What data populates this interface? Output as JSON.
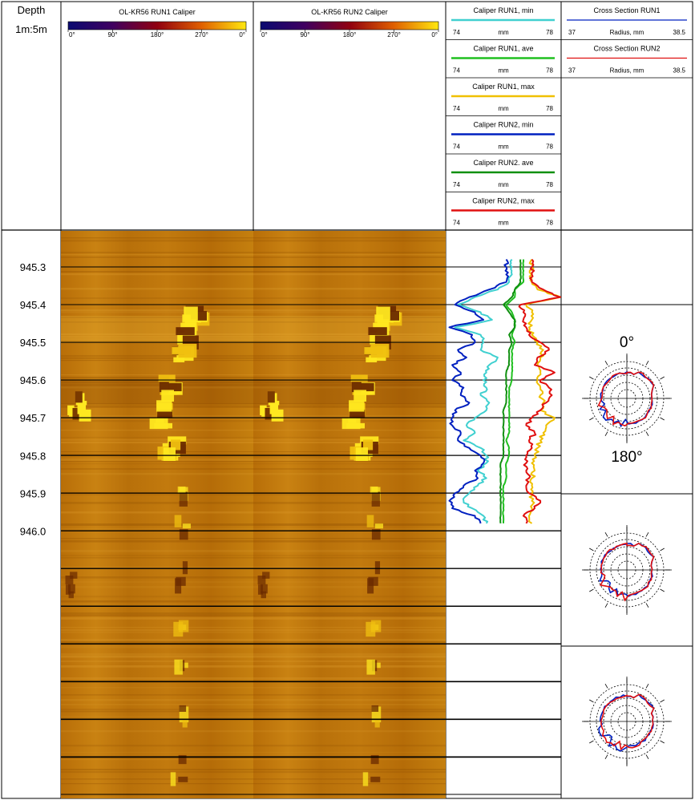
{
  "header": {
    "depth_title": "Depth",
    "depth_scale": "1m:5m",
    "run1_image_title": "OL-KR56 RUN1 Caliper",
    "run2_image_title": "OL-KR56 RUN2 Caliper",
    "scale_ticks": [
      "0°",
      "90°",
      "180°",
      "270°",
      "0°"
    ]
  },
  "legends": [
    {
      "title": "Caliper RUN1, min",
      "left": "74",
      "unit": "mm",
      "right": "78",
      "color": "#40d0d0"
    },
    {
      "title": "Caliper RUN1, ave",
      "left": "74",
      "unit": "mm",
      "right": "78",
      "color": "#20c020"
    },
    {
      "title": "Caliper RUN1, max",
      "left": "74",
      "unit": "mm",
      "right": "78",
      "color": "#f0c000"
    },
    {
      "title": "Caliper RUN2, min",
      "left": "74",
      "unit": "mm",
      "right": "78",
      "color": "#0020c0"
    },
    {
      "title": "Caliper RUN2. ave",
      "left": "74",
      "unit": "mm",
      "right": "78",
      "color": "#109010"
    },
    {
      "title": "Caliper RUN2, max",
      "left": "74",
      "unit": "mm",
      "right": "78",
      "color": "#e01010"
    }
  ],
  "cross_legends": [
    {
      "title": "Cross Section RUN1",
      "left": "37",
      "unit": "Radius, mm",
      "right": "38.5",
      "color": "#0020c0"
    },
    {
      "title": "Cross Section RUN2",
      "left": "37",
      "unit": "Radius, mm",
      "right": "38.5",
      "color": "#e01010"
    }
  ],
  "polar_labels": {
    "top": "0°",
    "bottom": "180°"
  },
  "chart_data": {
    "type": "line",
    "depth_ticks": [
      "945.3",
      "945.4",
      "945.5",
      "945.6",
      "945.7",
      "945.8",
      "945.9",
      "946.0"
    ],
    "xlim": [
      74,
      78
    ],
    "x_unit": "mm",
    "depth": [
      945.28,
      945.3,
      945.32,
      945.34,
      945.36,
      945.38,
      945.4,
      945.42,
      945.44,
      945.46,
      945.48,
      945.5,
      945.52,
      945.54,
      945.56,
      945.58,
      945.6,
      945.62,
      945.64,
      945.66,
      945.68,
      945.7,
      945.72,
      945.74,
      945.76,
      945.78,
      945.8,
      945.82,
      945.84,
      945.86,
      945.88,
      945.9,
      945.92,
      945.94,
      945.96,
      945.98
    ],
    "series": [
      {
        "name": "Caliper RUN1, min",
        "color": "#40d0d0",
        "values": [
          76.3,
          76.3,
          76.3,
          76.2,
          75.8,
          75.0,
          74.4,
          75.2,
          75.6,
          74.3,
          75.2,
          75.3,
          75.2,
          75.8,
          75.5,
          75.4,
          75.3,
          75.4,
          75.2,
          75.5,
          75.4,
          75.0,
          74.7,
          75.0,
          74.6,
          75.2,
          75.4,
          75.4,
          75.1,
          75.4,
          75.1,
          74.8,
          74.6,
          74.9,
          75.3,
          75.4
        ]
      },
      {
        "name": "Caliper RUN1, ave",
        "color": "#20c020",
        "values": [
          76.7,
          76.7,
          76.7,
          76.7,
          76.4,
          76.4,
          76.1,
          76.3,
          76.4,
          76.4,
          76.3,
          76.4,
          76.3,
          76.3,
          76.3,
          76.3,
          76.3,
          76.2,
          76.2,
          76.2,
          76.2,
          76.2,
          76.2,
          76.2,
          76.1,
          76.2,
          76.2,
          76.1,
          76.1,
          76.1,
          76.0,
          76.0,
          76.0,
          76.0,
          76.0,
          76.0
        ]
      },
      {
        "name": "Caliper RUN1, max",
        "color": "#f0c000",
        "values": [
          77.0,
          77.0,
          77.0,
          77.0,
          77.2,
          78.0,
          76.8,
          77.0,
          77.0,
          76.9,
          77.0,
          77.2,
          77.4,
          77.3,
          77.2,
          77.3,
          77.2,
          77.3,
          77.3,
          77.4,
          77.3,
          77.8,
          77.5,
          77.4,
          77.3,
          77.2,
          77.1,
          77.0,
          77.1,
          77.0,
          77.0,
          77.0,
          77.0,
          77.0,
          76.9,
          77.0
        ]
      },
      {
        "name": "Caliper RUN2, min",
        "color": "#0020c0",
        "values": [
          76.1,
          76.1,
          76.1,
          76.1,
          75.5,
          74.8,
          74.3,
          75.0,
          75.3,
          74.1,
          74.9,
          75.0,
          74.4,
          74.7,
          74.2,
          74.5,
          74.2,
          74.6,
          74.5,
          74.8,
          74.3,
          74.2,
          74.2,
          74.5,
          74.4,
          74.8,
          75.2,
          75.3,
          75.0,
          75.1,
          74.6,
          74.3,
          74.1,
          74.2,
          75.0,
          75.2
        ]
      },
      {
        "name": "Caliper RUN2. ave",
        "color": "#109010",
        "values": [
          76.6,
          76.6,
          76.6,
          76.6,
          76.4,
          76.3,
          76.0,
          76.2,
          76.4,
          76.4,
          76.2,
          76.3,
          76.2,
          76.2,
          76.2,
          76.1,
          76.1,
          76.1,
          76.1,
          76.1,
          76.0,
          76.0,
          76.0,
          76.0,
          76.0,
          76.0,
          76.0,
          75.9,
          75.9,
          75.9,
          75.9,
          75.9,
          75.9,
          75.9,
          75.9,
          75.9
        ]
      },
      {
        "name": "Caliper RUN2, max",
        "color": "#e01010",
        "values": [
          77.0,
          77.0,
          77.0,
          77.0,
          77.4,
          78.0,
          76.6,
          76.7,
          76.7,
          76.8,
          76.9,
          77.3,
          77.6,
          77.2,
          77.1,
          77.8,
          77.3,
          77.6,
          77.7,
          77.5,
          77.3,
          77.0,
          76.8,
          77.1,
          76.9,
          77.0,
          76.8,
          76.8,
          76.8,
          76.9,
          76.8,
          76.9,
          77.3,
          77.1,
          76.7,
          76.8
        ]
      }
    ]
  }
}
